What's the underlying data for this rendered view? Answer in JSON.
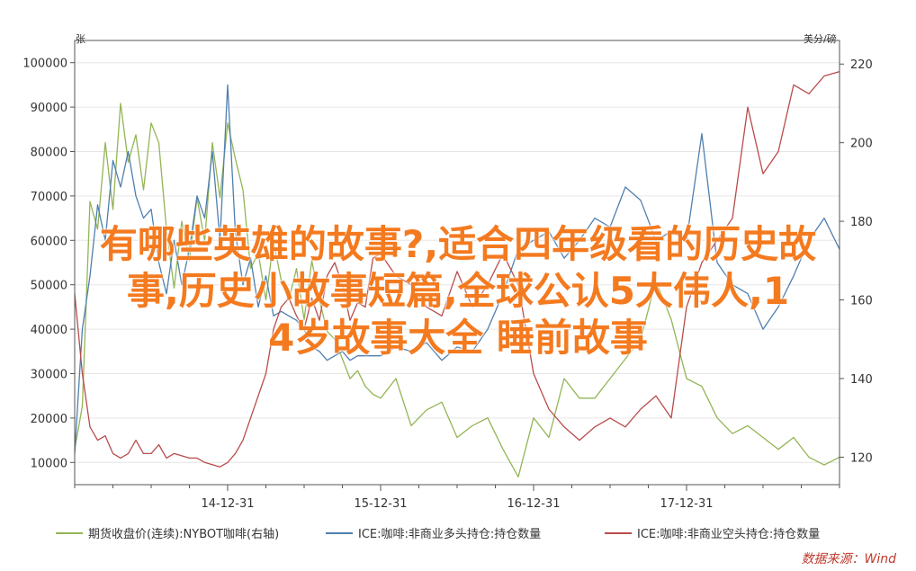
{
  "overlay": {
    "line1": "有哪些英雄的故事?,适合四年级看的历史故",
    "line2": "事,历史小故事短篇,全球公认5大伟人,1",
    "line3": "4岁故事大全 睡前故事"
  },
  "source": "数据来源：Wind",
  "colors": {
    "s1": "#93b555",
    "s2": "#4f7fae",
    "s3": "#b94b4b",
    "axis": "#555555",
    "grid": "#e6e6e6"
  },
  "chart_data": {
    "type": "line",
    "left_unit": "张",
    "right_unit": "美分/磅",
    "yleft": {
      "ticks": [
        10000,
        20000,
        30000,
        40000,
        50000,
        60000,
        70000,
        80000,
        90000,
        100000
      ],
      "range": [
        5000,
        105000
      ]
    },
    "yright": {
      "ticks": [
        120,
        140,
        160,
        180,
        200,
        220
      ],
      "range": [
        113,
        226
      ]
    },
    "xticks": [
      "14-12-31",
      "15-12-31",
      "16-12-31",
      "17-12-31"
    ],
    "xrange": [
      2013.0,
      2018.0
    ],
    "series": [
      {
        "name": "期货收盘价(连续):NYBOT咖啡(右轴)",
        "axis": "right",
        "color": "#93b555",
        "x": [
          2013.0,
          2013.05,
          2013.1,
          2013.15,
          2013.2,
          2013.25,
          2013.3,
          2013.35,
          2013.4,
          2013.45,
          2013.5,
          2013.55,
          2013.6,
          2013.65,
          2013.7,
          2013.75,
          2013.8,
          2013.85,
          2013.9,
          2013.95,
          2014.0,
          2014.05,
          2014.1,
          2014.15,
          2014.2,
          2014.25,
          2014.3,
          2014.35,
          2014.4,
          2014.45,
          2014.5,
          2014.55,
          2014.6,
          2014.65,
          2014.7,
          2014.75,
          2014.8,
          2014.85,
          2014.9,
          2014.95,
          2015.0,
          2015.1,
          2015.2,
          2015.3,
          2015.4,
          2015.5,
          2015.6,
          2015.7,
          2015.8,
          2015.9,
          2016.0,
          2016.1,
          2016.2,
          2016.3,
          2016.4,
          2016.5,
          2016.6,
          2016.7,
          2016.8,
          2016.9,
          2017.0,
          2017.1,
          2017.2,
          2017.3,
          2017.4,
          2017.5,
          2017.6,
          2017.7,
          2017.8,
          2017.9,
          2018.0
        ],
        "values": [
          122,
          133,
          185,
          178,
          200,
          183,
          210,
          195,
          202,
          188,
          205,
          200,
          178,
          163,
          180,
          170,
          186,
          175,
          200,
          186,
          205,
          196,
          188,
          168,
          172,
          160,
          175,
          165,
          160,
          168,
          155,
          170,
          160,
          152,
          150,
          145,
          140,
          142,
          138,
          136,
          135,
          140,
          128,
          132,
          134,
          125,
          128,
          130,
          122,
          115,
          130,
          125,
          140,
          135,
          135,
          140,
          145,
          150,
          165,
          155,
          140,
          138,
          130,
          126,
          128,
          125,
          122,
          125,
          120,
          118,
          120
        ]
      },
      {
        "name": "ICE:咖啡:非商业多头持仓:持仓数量",
        "axis": "left",
        "color": "#4f7fae",
        "x": [
          2013.0,
          2013.05,
          2013.1,
          2013.15,
          2013.2,
          2013.25,
          2013.3,
          2013.35,
          2013.4,
          2013.45,
          2013.5,
          2013.55,
          2013.6,
          2013.65,
          2013.7,
          2013.75,
          2013.8,
          2013.85,
          2013.9,
          2013.95,
          2014.0,
          2014.05,
          2014.1,
          2014.15,
          2014.2,
          2014.25,
          2014.3,
          2014.35,
          2014.4,
          2014.45,
          2014.5,
          2014.55,
          2014.6,
          2014.65,
          2014.7,
          2014.75,
          2014.8,
          2014.85,
          2014.9,
          2014.95,
          2015.0,
          2015.1,
          2015.2,
          2015.3,
          2015.4,
          2015.5,
          2015.6,
          2015.7,
          2015.8,
          2015.9,
          2016.0,
          2016.1,
          2016.2,
          2016.3,
          2016.4,
          2016.5,
          2016.6,
          2016.7,
          2016.8,
          2016.9,
          2017.0,
          2017.1,
          2017.2,
          2017.3,
          2017.4,
          2017.5,
          2017.6,
          2017.7,
          2017.8,
          2017.9,
          2018.0
        ],
        "values": [
          12000,
          40000,
          52000,
          68000,
          60000,
          78000,
          72000,
          80000,
          70000,
          65000,
          67000,
          55000,
          48000,
          60000,
          50000,
          58000,
          70000,
          65000,
          80000,
          60000,
          95000,
          62000,
          50000,
          56000,
          45000,
          52000,
          43000,
          44000,
          43000,
          42000,
          40000,
          36000,
          35000,
          33000,
          34000,
          35000,
          33000,
          34000,
          34000,
          34000,
          34000,
          36000,
          35000,
          37000,
          33000,
          36000,
          35000,
          40000,
          48000,
          58000,
          60000,
          62000,
          56000,
          60000,
          65000,
          63000,
          72000,
          69000,
          60000,
          62000,
          60000,
          84000,
          55000,
          50000,
          48000,
          40000,
          45000,
          52000,
          60000,
          65000,
          58000
        ]
      },
      {
        "name": "ICE:咖啡:非商业空头持仓:持仓数量",
        "axis": "left",
        "color": "#b94b4b",
        "x": [
          2013.0,
          2013.05,
          2013.1,
          2013.15,
          2013.2,
          2013.25,
          2013.3,
          2013.35,
          2013.4,
          2013.45,
          2013.5,
          2013.55,
          2013.6,
          2013.65,
          2013.7,
          2013.75,
          2013.8,
          2013.85,
          2013.9,
          2013.95,
          2014.0,
          2014.05,
          2014.1,
          2014.15,
          2014.2,
          2014.25,
          2014.3,
          2014.35,
          2014.4,
          2014.45,
          2014.5,
          2014.55,
          2014.6,
          2014.65,
          2014.7,
          2014.75,
          2014.8,
          2014.85,
          2014.9,
          2014.95,
          2015.0,
          2015.1,
          2015.2,
          2015.3,
          2015.4,
          2015.5,
          2015.6,
          2015.7,
          2015.8,
          2015.9,
          2016.0,
          2016.1,
          2016.2,
          2016.3,
          2016.4,
          2016.5,
          2016.6,
          2016.7,
          2016.8,
          2016.9,
          2017.0,
          2017.1,
          2017.2,
          2017.3,
          2017.4,
          2017.5,
          2017.6,
          2017.7,
          2017.8,
          2017.9,
          2018.0
        ],
        "values": [
          48000,
          30000,
          18000,
          15000,
          16000,
          12000,
          11000,
          12000,
          15000,
          12000,
          12000,
          14000,
          11000,
          12000,
          11500,
          11000,
          11000,
          10000,
          9500,
          9000,
          10000,
          12000,
          15000,
          20000,
          25000,
          30000,
          40000,
          45000,
          47000,
          43000,
          40000,
          47000,
          42000,
          52000,
          55000,
          50000,
          42000,
          46000,
          45000,
          56000,
          57000,
          52000,
          50000,
          45000,
          43000,
          53000,
          45000,
          50000,
          57000,
          50000,
          30000,
          22000,
          18000,
          15000,
          18000,
          20000,
          18000,
          22000,
          25000,
          20000,
          45000,
          55000,
          60000,
          65000,
          90000,
          75000,
          80000,
          95000,
          93000,
          97000,
          98000
        ]
      }
    ]
  }
}
